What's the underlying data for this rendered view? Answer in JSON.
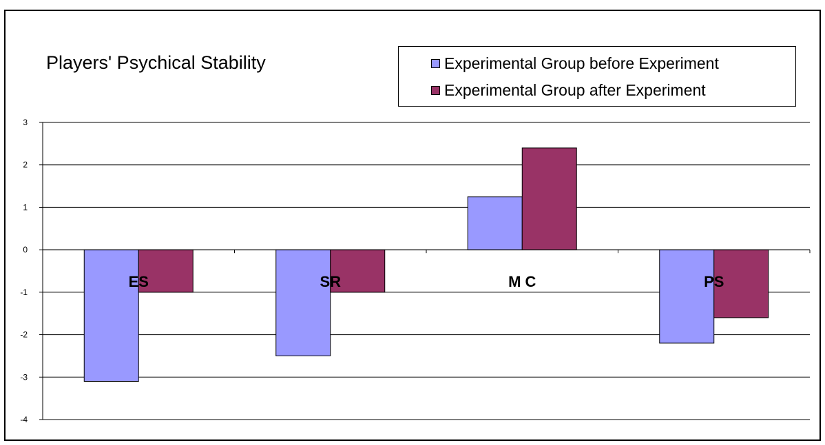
{
  "colors": {
    "before": "#9999ff",
    "after": "#993366",
    "axis": "#000000"
  },
  "chart_data": {
    "type": "bar",
    "title": "Players' Psychical Stability",
    "xlabel": "",
    "ylabel": "",
    "categories": [
      "ES",
      "SR",
      "MC",
      "PS"
    ],
    "category_label_display": [
      "ES",
      "SR",
      "M C",
      "PS"
    ],
    "series": [
      {
        "name": "Experimental Group before Experiment",
        "values": [
          -3.1,
          -2.5,
          1.25,
          -2.2
        ]
      },
      {
        "name": "Experimental Group after Experiment",
        "values": [
          -1.0,
          -1.0,
          2.4,
          -1.6
        ]
      }
    ],
    "ylim": [
      -4,
      3
    ],
    "yticks": [
      3,
      2,
      1,
      0,
      -1,
      -2,
      -3,
      -4
    ],
    "grid": true,
    "legend_position": "top-right"
  }
}
